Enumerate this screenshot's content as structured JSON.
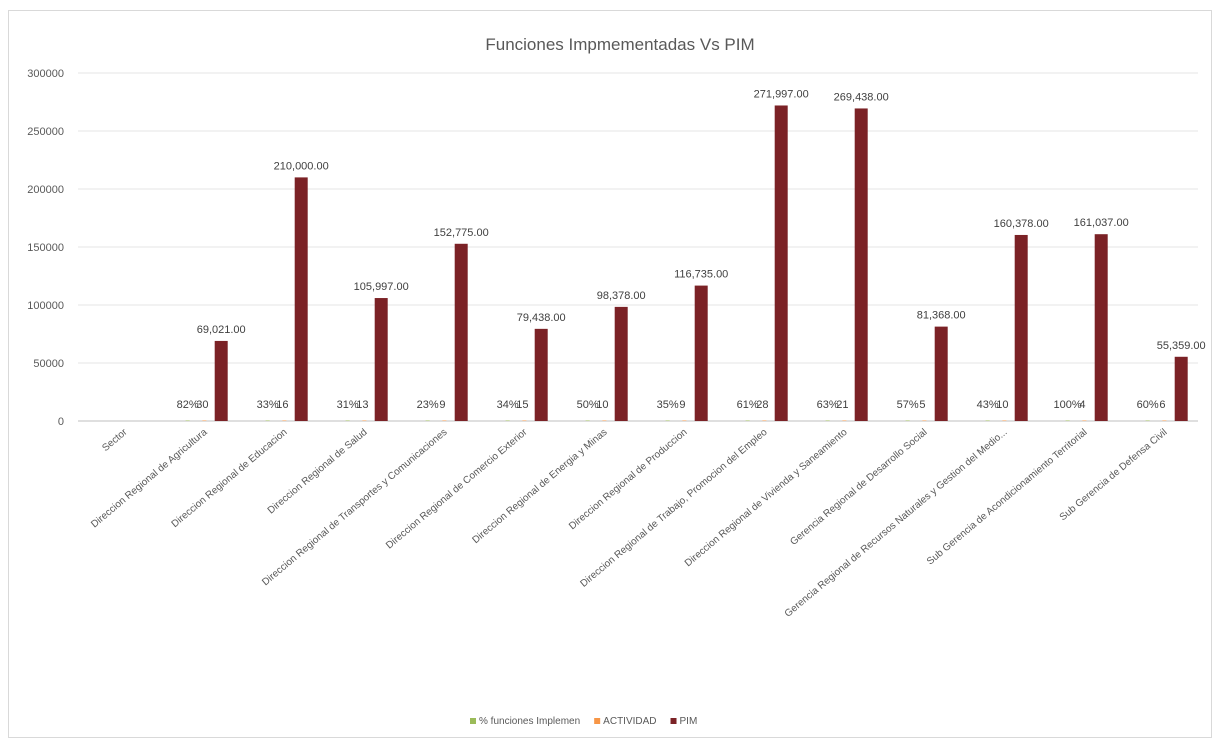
{
  "chart_data": {
    "type": "bar",
    "title": "Funciones Impmementadas Vs PIM",
    "ylim": [
      0,
      300000
    ],
    "yticks": [
      "0",
      "50000",
      "100000",
      "150000",
      "200000",
      "250000",
      "300000"
    ],
    "grid": true,
    "legend_position": "bottom",
    "categories": [
      "Sector",
      "Direccion Regional de Agricultura",
      "Direccion Regional de Educacion",
      "Direccion Regional de Salud",
      "Direccion Regional de Transportes y Comunicaciones",
      "Direccion Regional de Comercio Exterior",
      "Direccion Regional de Energia y Minas",
      "Direccion Regional de Produccion",
      "Direccion Regional de Trabajo, Promocion del Empleo",
      "Direccion Regional de Vivienda y Saneamiento",
      "Gerencia Regional de Desarrollo Social",
      "Gerencia Regional de Recursos Naturales y Gestion del Medio...",
      "Sub Gerencia de Acondicionamiento Territorial",
      "Sub Gerencia de Defensa Civil"
    ],
    "series": [
      {
        "name": "% funciones Implemen",
        "color": "#9bbb59",
        "values": [
          null,
          0.82,
          0.33,
          0.31,
          0.23,
          0.34,
          0.5,
          0.35,
          0.61,
          0.63,
          0.57,
          0.43,
          1.0,
          0.6
        ],
        "labels": [
          "",
          "82%",
          "33%",
          "31%",
          "23%",
          "34%",
          "50%",
          "35%",
          "61%",
          "63%",
          "57%",
          "43%",
          "100%",
          "60%"
        ]
      },
      {
        "name": "ACTIVIDAD",
        "color": "#f79646",
        "values": [
          null,
          30,
          16,
          13,
          9,
          15,
          10,
          9,
          28,
          21,
          5,
          10,
          4,
          6
        ],
        "labels": [
          "",
          "30",
          "16",
          "13",
          "9",
          "15",
          "10",
          "9",
          "28",
          "21",
          "5",
          "10",
          "4",
          "6"
        ]
      },
      {
        "name": "PIM",
        "color": "#7b2226",
        "values": [
          null,
          69021,
          210000,
          105997,
          152775,
          79438,
          98378,
          116735,
          271997,
          269438,
          81368,
          160378,
          161037,
          55359
        ],
        "labels": [
          "",
          "69,021.00",
          "210,000.00",
          "105,997.00",
          "152,775.00",
          "79,438.00",
          "98,378.00",
          "116,735.00",
          "271,997.00",
          "269,438.00",
          "81,368.00",
          "160,378.00",
          "161,037.00",
          "55,359.00"
        ]
      }
    ]
  }
}
